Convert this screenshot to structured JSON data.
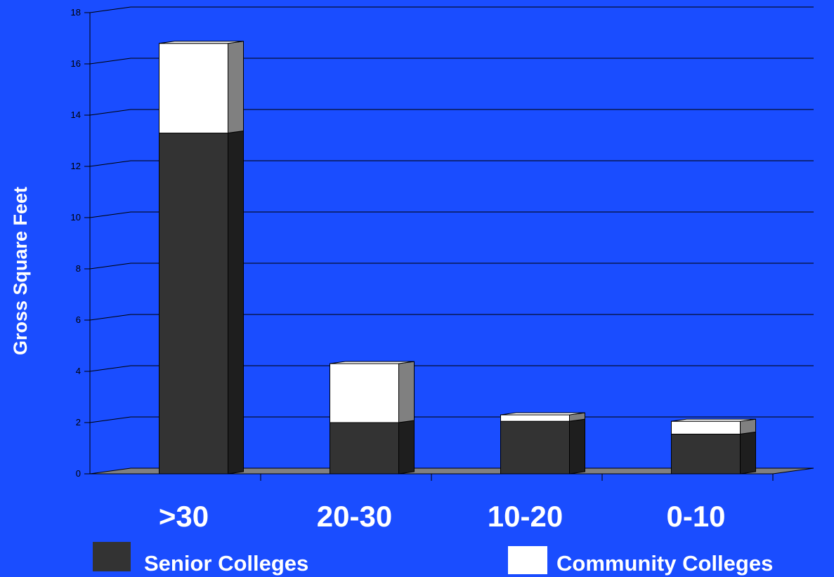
{
  "chart_data": {
    "type": "bar",
    "stacked": true,
    "style_3d": true,
    "categories": [
      ">30",
      "20-30",
      "10-20",
      "0-10"
    ],
    "series": [
      {
        "name": "Senior Colleges",
        "values": [
          13.3,
          2.0,
          2.05,
          1.55
        ],
        "color": "#333333"
      },
      {
        "name": "Community Colleges",
        "values": [
          3.5,
          2.3,
          0.25,
          0.5
        ],
        "color": "#ffffff"
      }
    ],
    "ylabel": "Gross Square Feet",
    "xlabel": "",
    "ylim": [
      0,
      18
    ],
    "yticks": [
      0,
      2,
      4,
      6,
      8,
      10,
      12,
      14,
      16,
      18
    ],
    "grid": true,
    "legend_position": "bottom",
    "colors": {
      "background": "#1a4dff",
      "floor": "#808080",
      "side_dark": "#1e1e1e",
      "side_light": "#808080",
      "grid": "#000000"
    }
  }
}
